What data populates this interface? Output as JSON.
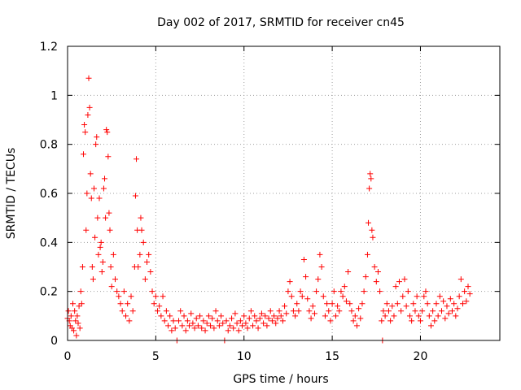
{
  "chart_data": {
    "type": "scatter",
    "title": "Day 002 of 2017, SRMTID for receiver cn45",
    "xlabel": "GPS time / hours",
    "ylabel": "SRMTID / TECUs",
    "xlim": [
      0,
      24.5
    ],
    "ylim": [
      0,
      1.2
    ],
    "xticks": [
      0,
      5,
      10,
      15,
      20
    ],
    "yticks": [
      0,
      0.2,
      0.4,
      0.6,
      0.8,
      1,
      1.2
    ],
    "xtick_labels": [
      "0",
      "5",
      "10",
      "15",
      "20"
    ],
    "ytick_labels": [
      "0",
      "0.2",
      "0.4",
      "0.6",
      "0.8",
      "1",
      "1.2"
    ],
    "grid": true,
    "marker": "plus",
    "series": [
      {
        "name": "cn45",
        "color": "#ff0000",
        "points": [
          [
            0.0,
            0.09
          ],
          [
            0.05,
            0.12
          ],
          [
            0.1,
            0.08
          ],
          [
            0.15,
            0.06
          ],
          [
            0.2,
            0.1
          ],
          [
            0.25,
            0.05
          ],
          [
            0.3,
            0.15
          ],
          [
            0.35,
            0.04
          ],
          [
            0.4,
            0.12
          ],
          [
            0.45,
            0.08
          ],
          [
            0.5,
            0.02
          ],
          [
            0.55,
            0.1
          ],
          [
            0.6,
            0.07
          ],
          [
            0.65,
            0.14
          ],
          [
            0.7,
            0.05
          ],
          [
            0.75,
            0.2
          ],
          [
            0.8,
            0.15
          ],
          [
            0.85,
            0.3
          ],
          [
            0.9,
            0.76
          ],
          [
            0.95,
            0.88
          ],
          [
            1.0,
            0.85
          ],
          [
            1.05,
            0.45
          ],
          [
            1.1,
            0.6
          ],
          [
            1.15,
            0.92
          ],
          [
            1.2,
            1.07
          ],
          [
            1.25,
            0.95
          ],
          [
            1.3,
            0.68
          ],
          [
            1.35,
            0.58
          ],
          [
            1.4,
            0.3
          ],
          [
            1.45,
            0.25
          ],
          [
            1.5,
            0.62
          ],
          [
            1.55,
            0.42
          ],
          [
            1.6,
            0.8
          ],
          [
            1.65,
            0.83
          ],
          [
            1.7,
            0.5
          ],
          [
            1.75,
            0.35
          ],
          [
            1.8,
            0.58
          ],
          [
            1.85,
            0.38
          ],
          [
            1.9,
            0.4
          ],
          [
            1.95,
            0.28
          ],
          [
            2.0,
            0.32
          ],
          [
            2.05,
            0.62
          ],
          [
            2.1,
            0.66
          ],
          [
            2.15,
            0.5
          ],
          [
            2.2,
            0.86
          ],
          [
            2.25,
            0.85
          ],
          [
            2.3,
            0.75
          ],
          [
            2.35,
            0.52
          ],
          [
            2.4,
            0.45
          ],
          [
            2.45,
            0.3
          ],
          [
            2.5,
            0.22
          ],
          [
            2.6,
            0.35
          ],
          [
            2.7,
            0.25
          ],
          [
            2.8,
            0.2
          ],
          [
            2.9,
            0.18
          ],
          [
            3.0,
            0.15
          ],
          [
            3.1,
            0.12
          ],
          [
            3.2,
            0.2
          ],
          [
            3.3,
            0.1
          ],
          [
            3.4,
            0.15
          ],
          [
            3.5,
            0.08
          ],
          [
            3.6,
            0.18
          ],
          [
            3.7,
            0.12
          ],
          [
            3.8,
            0.3
          ],
          [
            3.85,
            0.59
          ],
          [
            3.9,
            0.74
          ],
          [
            3.95,
            0.45
          ],
          [
            4.0,
            0.3
          ],
          [
            4.1,
            0.35
          ],
          [
            4.15,
            0.5
          ],
          [
            4.2,
            0.45
          ],
          [
            4.3,
            0.4
          ],
          [
            4.4,
            0.25
          ],
          [
            4.5,
            0.32
          ],
          [
            4.6,
            0.35
          ],
          [
            4.7,
            0.28
          ],
          [
            4.8,
            0.2
          ],
          [
            4.9,
            0.15
          ],
          [
            5.0,
            0.18
          ],
          [
            5.1,
            0.12
          ],
          [
            5.2,
            0.14
          ],
          [
            5.3,
            0.1
          ],
          [
            5.4,
            0.18
          ],
          [
            5.5,
            0.08
          ],
          [
            5.6,
            0.12
          ],
          [
            5.7,
            0.06
          ],
          [
            5.8,
            0.1
          ],
          [
            5.9,
            0.04
          ],
          [
            6.0,
            0.08
          ],
          [
            6.1,
            0.05
          ],
          [
            6.2,
            0.0
          ],
          [
            6.3,
            0.08
          ],
          [
            6.4,
            0.12
          ],
          [
            6.5,
            0.06
          ],
          [
            6.6,
            0.1
          ],
          [
            6.7,
            0.04
          ],
          [
            6.8,
            0.08
          ],
          [
            6.9,
            0.06
          ],
          [
            7.0,
            0.11
          ],
          [
            7.1,
            0.07
          ],
          [
            7.2,
            0.05
          ],
          [
            7.3,
            0.09
          ],
          [
            7.4,
            0.06
          ],
          [
            7.5,
            0.1
          ],
          [
            7.6,
            0.05
          ],
          [
            7.7,
            0.08
          ],
          [
            7.8,
            0.04
          ],
          [
            7.9,
            0.07
          ],
          [
            8.0,
            0.1
          ],
          [
            8.1,
            0.06
          ],
          [
            8.2,
            0.09
          ],
          [
            8.3,
            0.05
          ],
          [
            8.4,
            0.12
          ],
          [
            8.5,
            0.08
          ],
          [
            8.6,
            0.06
          ],
          [
            8.7,
            0.1
          ],
          [
            8.8,
            0.07
          ],
          [
            8.9,
            0.0
          ],
          [
            9.0,
            0.08
          ],
          [
            9.1,
            0.04
          ],
          [
            9.2,
            0.06
          ],
          [
            9.3,
            0.09
          ],
          [
            9.4,
            0.05
          ],
          [
            9.5,
            0.11
          ],
          [
            9.6,
            0.07
          ],
          [
            9.7,
            0.04
          ],
          [
            9.8,
            0.08
          ],
          [
            9.9,
            0.06
          ],
          [
            10.0,
            0.1
          ],
          [
            10.1,
            0.07
          ],
          [
            10.2,
            0.05
          ],
          [
            10.3,
            0.09
          ],
          [
            10.4,
            0.12
          ],
          [
            10.5,
            0.06
          ],
          [
            10.6,
            0.1
          ],
          [
            10.7,
            0.08
          ],
          [
            10.8,
            0.05
          ],
          [
            10.9,
            0.09
          ],
          [
            11.0,
            0.11
          ],
          [
            11.1,
            0.07
          ],
          [
            11.2,
            0.1
          ],
          [
            11.3,
            0.06
          ],
          [
            11.4,
            0.09
          ],
          [
            11.5,
            0.12
          ],
          [
            11.6,
            0.08
          ],
          [
            11.7,
            0.1
          ],
          [
            11.8,
            0.07
          ],
          [
            11.9,
            0.09
          ],
          [
            12.0,
            0.12
          ],
          [
            12.1,
            0.1
          ],
          [
            12.2,
            0.08
          ],
          [
            12.3,
            0.14
          ],
          [
            12.4,
            0.11
          ],
          [
            12.5,
            0.2
          ],
          [
            12.6,
            0.24
          ],
          [
            12.7,
            0.18
          ],
          [
            12.8,
            0.12
          ],
          [
            12.9,
            0.1
          ],
          [
            13.0,
            0.15
          ],
          [
            13.1,
            0.12
          ],
          [
            13.2,
            0.2
          ],
          [
            13.3,
            0.18
          ],
          [
            13.4,
            0.33
          ],
          [
            13.5,
            0.26
          ],
          [
            13.6,
            0.17
          ],
          [
            13.7,
            0.12
          ],
          [
            13.8,
            0.09
          ],
          [
            13.9,
            0.14
          ],
          [
            14.0,
            0.11
          ],
          [
            14.1,
            0.2
          ],
          [
            14.2,
            0.25
          ],
          [
            14.3,
            0.35
          ],
          [
            14.4,
            0.3
          ],
          [
            14.5,
            0.18
          ],
          [
            14.6,
            0.1
          ],
          [
            14.7,
            0.15
          ],
          [
            14.8,
            0.12
          ],
          [
            14.9,
            0.08
          ],
          [
            15.0,
            0.15
          ],
          [
            15.1,
            0.2
          ],
          [
            15.2,
            0.1
          ],
          [
            15.3,
            0.14
          ],
          [
            15.4,
            0.12
          ],
          [
            15.5,
            0.2
          ],
          [
            15.6,
            0.18
          ],
          [
            15.7,
            0.22
          ],
          [
            15.8,
            0.16
          ],
          [
            15.9,
            0.28
          ],
          [
            16.0,
            0.15
          ],
          [
            16.1,
            0.12
          ],
          [
            16.2,
            0.08
          ],
          [
            16.3,
            0.1
          ],
          [
            16.4,
            0.06
          ],
          [
            16.5,
            0.13
          ],
          [
            16.6,
            0.09
          ],
          [
            16.7,
            0.15
          ],
          [
            16.8,
            0.2
          ],
          [
            16.9,
            0.26
          ],
          [
            17.0,
            0.35
          ],
          [
            17.05,
            0.48
          ],
          [
            17.1,
            0.62
          ],
          [
            17.15,
            0.68
          ],
          [
            17.2,
            0.66
          ],
          [
            17.25,
            0.45
          ],
          [
            17.3,
            0.42
          ],
          [
            17.4,
            0.3
          ],
          [
            17.5,
            0.24
          ],
          [
            17.6,
            0.28
          ],
          [
            17.7,
            0.2
          ],
          [
            17.8,
            0.08
          ],
          [
            17.85,
            0.0
          ],
          [
            17.9,
            0.12
          ],
          [
            18.0,
            0.1
          ],
          [
            18.1,
            0.15
          ],
          [
            18.2,
            0.12
          ],
          [
            18.3,
            0.08
          ],
          [
            18.4,
            0.14
          ],
          [
            18.5,
            0.1
          ],
          [
            18.6,
            0.22
          ],
          [
            18.7,
            0.15
          ],
          [
            18.8,
            0.24
          ],
          [
            18.9,
            0.12
          ],
          [
            19.0,
            0.18
          ],
          [
            19.1,
            0.25
          ],
          [
            19.2,
            0.14
          ],
          [
            19.3,
            0.2
          ],
          [
            19.4,
            0.1
          ],
          [
            19.5,
            0.08
          ],
          [
            19.6,
            0.15
          ],
          [
            19.7,
            0.12
          ],
          [
            19.8,
            0.18
          ],
          [
            19.9,
            0.1
          ],
          [
            20.0,
            0.08
          ],
          [
            20.1,
            0.12
          ],
          [
            20.2,
            0.18
          ],
          [
            20.3,
            0.2
          ],
          [
            20.4,
            0.15
          ],
          [
            20.5,
            0.1
          ],
          [
            20.6,
            0.06
          ],
          [
            20.7,
            0.12
          ],
          [
            20.8,
            0.08
          ],
          [
            20.9,
            0.15
          ],
          [
            21.0,
            0.1
          ],
          [
            21.1,
            0.18
          ],
          [
            21.2,
            0.12
          ],
          [
            21.3,
            0.16
          ],
          [
            21.4,
            0.09
          ],
          [
            21.5,
            0.14
          ],
          [
            21.6,
            0.11
          ],
          [
            21.7,
            0.17
          ],
          [
            21.8,
            0.12
          ],
          [
            21.9,
            0.15
          ],
          [
            22.0,
            0.1
          ],
          [
            22.1,
            0.13
          ],
          [
            22.2,
            0.18
          ],
          [
            22.3,
            0.25
          ],
          [
            22.4,
            0.15
          ],
          [
            22.5,
            0.2
          ],
          [
            22.6,
            0.16
          ],
          [
            22.7,
            0.22
          ],
          [
            22.8,
            0.19
          ]
        ]
      }
    ]
  }
}
